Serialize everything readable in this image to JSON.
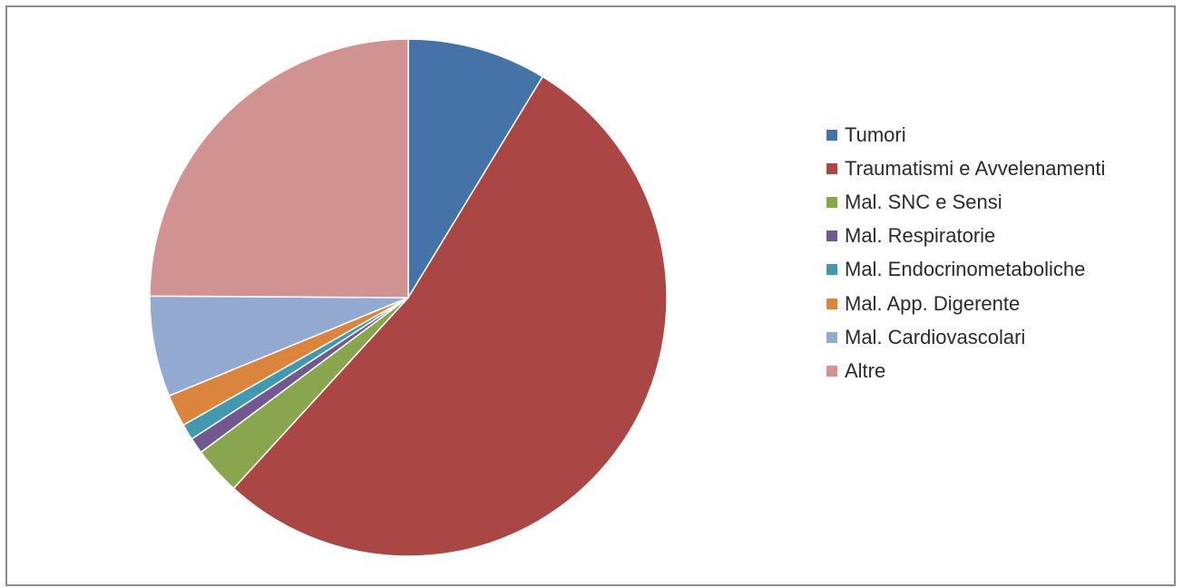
{
  "chart_data": {
    "type": "pie",
    "title": "",
    "legend_position": "right",
    "slices": [
      {
        "label": "Tumori",
        "value": 8.7,
        "color": "#4572A7"
      },
      {
        "label": "Traumatismi e Avvelenamenti",
        "value": 53.1,
        "color": "#AA4643"
      },
      {
        "label": "Mal. SNC e Sensi",
        "value": 3.0,
        "color": "#89A54E"
      },
      {
        "label": "Mal. Respiratorie",
        "value": 1.0,
        "color": "#71588F"
      },
      {
        "label": "Mal. Endocrinometaboliche",
        "value": 1.0,
        "color": "#4198AF"
      },
      {
        "label": "Mal. App. Digerente",
        "value": 2.0,
        "color": "#DB843D"
      },
      {
        "label": "Mal. Cardiovascolari",
        "value": 6.3,
        "color": "#93A9CF"
      },
      {
        "label": "Altre",
        "value": 24.9,
        "color": "#D19392"
      }
    ]
  }
}
